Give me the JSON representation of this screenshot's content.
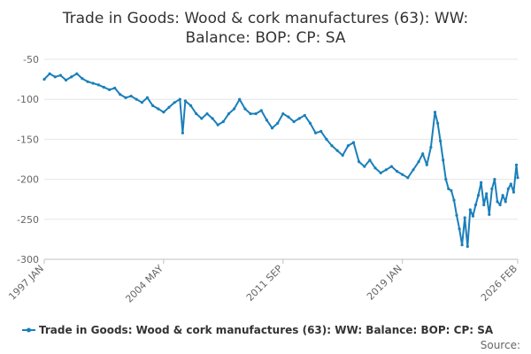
{
  "chart_data": {
    "type": "line",
    "title_lines": [
      "Trade in Goods: Wood & cork manufactures (63): WW:",
      "Balance: BOP: CP: SA"
    ],
    "xlabel": "",
    "ylabel": "",
    "x_tick_labels": [
      "1997 JAN",
      "2004 MAY",
      "2011 SEP",
      "2019 JAN",
      "2026 FEB"
    ],
    "x_range": [
      "1997 JAN",
      "2026 FEB"
    ],
    "y_ticks": [
      -50,
      -100,
      -150,
      -200,
      -250,
      -300
    ],
    "ylim": [
      -300,
      -50
    ],
    "grid": "horizontal",
    "legend_position": "bottom",
    "source_label": "Source:",
    "colors": {
      "series": "#1a7fba",
      "grid": "#e6e6e6",
      "axis": "#c0c0c0"
    },
    "series": [
      {
        "name": "Trade in Goods: Wood & cork manufactures (63): WW: Balance: BOP: CP: SA",
        "points": [
          [
            "1997 JAN",
            -75
          ],
          [
            "1997 MAY",
            -68
          ],
          [
            "1997 SEP",
            -72
          ],
          [
            "1998 JAN",
            -70
          ],
          [
            "1998 MAY",
            -76
          ],
          [
            "1998 SEP",
            -72
          ],
          [
            "1999 JAN",
            -68
          ],
          [
            "1999 MAY",
            -74
          ],
          [
            "1999 SEP",
            -78
          ],
          [
            "2000 JAN",
            -80
          ],
          [
            "2000 MAY",
            -82
          ],
          [
            "2000 SEP",
            -85
          ],
          [
            "2001 JAN",
            -88
          ],
          [
            "2001 MAY",
            -86
          ],
          [
            "2001 SEP",
            -94
          ],
          [
            "2002 JAN",
            -98
          ],
          [
            "2002 MAY",
            -96
          ],
          [
            "2002 SEP",
            -100
          ],
          [
            "2003 JAN",
            -104
          ],
          [
            "2003 MAY",
            -98
          ],
          [
            "2003 SEP",
            -108
          ],
          [
            "2004 JAN",
            -112
          ],
          [
            "2004 MAY",
            -116
          ],
          [
            "2004 SEP",
            -110
          ],
          [
            "2005 JAN",
            -104
          ],
          [
            "2005 MAY",
            -100
          ],
          [
            "2005 JUL",
            -142
          ],
          [
            "2005 SEP",
            -102
          ],
          [
            "2006 JAN",
            -108
          ],
          [
            "2006 MAY",
            -118
          ],
          [
            "2006 SEP",
            -124
          ],
          [
            "2007 JAN",
            -118
          ],
          [
            "2007 MAY",
            -124
          ],
          [
            "2007 SEP",
            -132
          ],
          [
            "2008 JAN",
            -128
          ],
          [
            "2008 MAY",
            -118
          ],
          [
            "2008 SEP",
            -112
          ],
          [
            "2009 JAN",
            -100
          ],
          [
            "2009 MAY",
            -112
          ],
          [
            "2009 SEP",
            -118
          ],
          [
            "2010 JAN",
            -118
          ],
          [
            "2010 MAY",
            -114
          ],
          [
            "2010 SEP",
            -126
          ],
          [
            "2011 JAN",
            -136
          ],
          [
            "2011 MAY",
            -130
          ],
          [
            "2011 SEP",
            -118
          ],
          [
            "2012 JAN",
            -122
          ],
          [
            "2012 MAY",
            -128
          ],
          [
            "2012 SEP",
            -124
          ],
          [
            "2013 JAN",
            -120
          ],
          [
            "2013 MAY",
            -130
          ],
          [
            "2013 SEP",
            -142
          ],
          [
            "2014 JAN",
            -140
          ],
          [
            "2014 MAY",
            -150
          ],
          [
            "2014 SEP",
            -158
          ],
          [
            "2015 JAN",
            -164
          ],
          [
            "2015 MAY",
            -170
          ],
          [
            "2015 SEP",
            -158
          ],
          [
            "2016 JAN",
            -154
          ],
          [
            "2016 MAY",
            -178
          ],
          [
            "2016 SEP",
            -184
          ],
          [
            "2017 JAN",
            -176
          ],
          [
            "2017 MAY",
            -186
          ],
          [
            "2017 SEP",
            -192
          ],
          [
            "2018 JAN",
            -188
          ],
          [
            "2018 MAY",
            -184
          ],
          [
            "2018 SEP",
            -190
          ],
          [
            "2019 JAN",
            -194
          ],
          [
            "2019 MAY",
            -198
          ],
          [
            "2019 SEP",
            -188
          ],
          [
            "2020 JAN",
            -178
          ],
          [
            "2020 APR",
            -168
          ],
          [
            "2020 JUL",
            -182
          ],
          [
            "2020 OCT",
            -160
          ],
          [
            "2021 JAN",
            -116
          ],
          [
            "2021 MAR",
            -130
          ],
          [
            "2021 MAY",
            -152
          ],
          [
            "2021 JUL",
            -176
          ],
          [
            "2021 SEP",
            -200
          ],
          [
            "2021 NOV",
            -212
          ],
          [
            "2022 JAN",
            -214
          ],
          [
            "2022 MAR",
            -226
          ],
          [
            "2022 MAY",
            -245
          ],
          [
            "2022 JUL",
            -262
          ],
          [
            "2022 SEP",
            -282
          ],
          [
            "2022 NOV",
            -248
          ],
          [
            "2023 JAN",
            -284
          ],
          [
            "2023 MAR",
            -238
          ],
          [
            "2023 MAY",
            -246
          ],
          [
            "2023 JUL",
            -232
          ],
          [
            "2023 SEP",
            -220
          ],
          [
            "2023 NOV",
            -204
          ],
          [
            "2024 JAN",
            -232
          ],
          [
            "2024 MAR",
            -218
          ],
          [
            "2024 MAY",
            -244
          ],
          [
            "2024 JUL",
            -212
          ],
          [
            "2024 SEP",
            -200
          ],
          [
            "2024 NOV",
            -228
          ],
          [
            "2025 JAN",
            -232
          ],
          [
            "2025 MAR",
            -220
          ],
          [
            "2025 MAY",
            -228
          ],
          [
            "2025 JUL",
            -212
          ],
          [
            "2025 SEP",
            -206
          ],
          [
            "2025 NOV",
            -216
          ],
          [
            "2026 JAN",
            -182
          ],
          [
            "2026 FEB",
            -198
          ]
        ]
      }
    ]
  }
}
